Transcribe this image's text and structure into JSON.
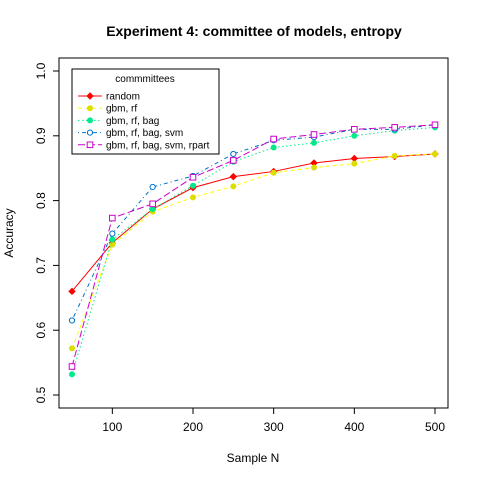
{
  "chart_data": {
    "type": "line",
    "title": "Experiment 4: committee of models, entropy",
    "xlabel": "Sample N",
    "ylabel": "Accuracy",
    "xlim": [
      50,
      500
    ],
    "ylim": [
      0.5,
      1.0
    ],
    "xticks": [
      100,
      200,
      300,
      400,
      500
    ],
    "yticks": [
      0.5,
      0.6,
      0.7,
      0.8,
      0.9,
      1.0
    ],
    "grid": false,
    "legend": {
      "title": "commmittees",
      "placement": "top-left"
    },
    "x": [
      50,
      100,
      150,
      200,
      250,
      300,
      350,
      400,
      450,
      500
    ],
    "series": [
      {
        "name": "random",
        "color": "#ff0000",
        "line_style": "solid",
        "marker": "diamond",
        "values": [
          0.66,
          0.735,
          0.787,
          0.82,
          0.837,
          0.845,
          0.858,
          0.865,
          0.868,
          0.872
        ]
      },
      {
        "name": "gbm, rf",
        "color": "#ffff00",
        "marker_color": "#dddd00",
        "line_style": "dashed",
        "marker": "circle-filled",
        "values": [
          0.572,
          0.732,
          0.783,
          0.805,
          0.822,
          0.843,
          0.851,
          0.857,
          0.869,
          0.872
        ]
      },
      {
        "name": "gbm, rf, bag",
        "color": "#00e98a",
        "line_style": "dotted",
        "marker": "circle-filled",
        "values": [
          0.532,
          0.74,
          0.787,
          0.823,
          0.86,
          0.882,
          0.889,
          0.9,
          0.908,
          0.913
        ]
      },
      {
        "name": "gbm, rf, bag, svm",
        "color": "#0072c6",
        "line_style": "dashdot",
        "marker": "circle-open",
        "values": [
          0.615,
          0.749,
          0.821,
          0.838,
          0.872,
          0.893,
          0.898,
          0.91,
          0.91,
          0.917
        ]
      },
      {
        "name": "gbm, rf, bag, svm, rpart",
        "color": "#cc00cc",
        "line_style": "longdash",
        "marker": "square-open",
        "values": [
          0.544,
          0.773,
          0.795,
          0.836,
          0.862,
          0.895,
          0.902,
          0.91,
          0.913,
          0.917
        ]
      }
    ]
  }
}
